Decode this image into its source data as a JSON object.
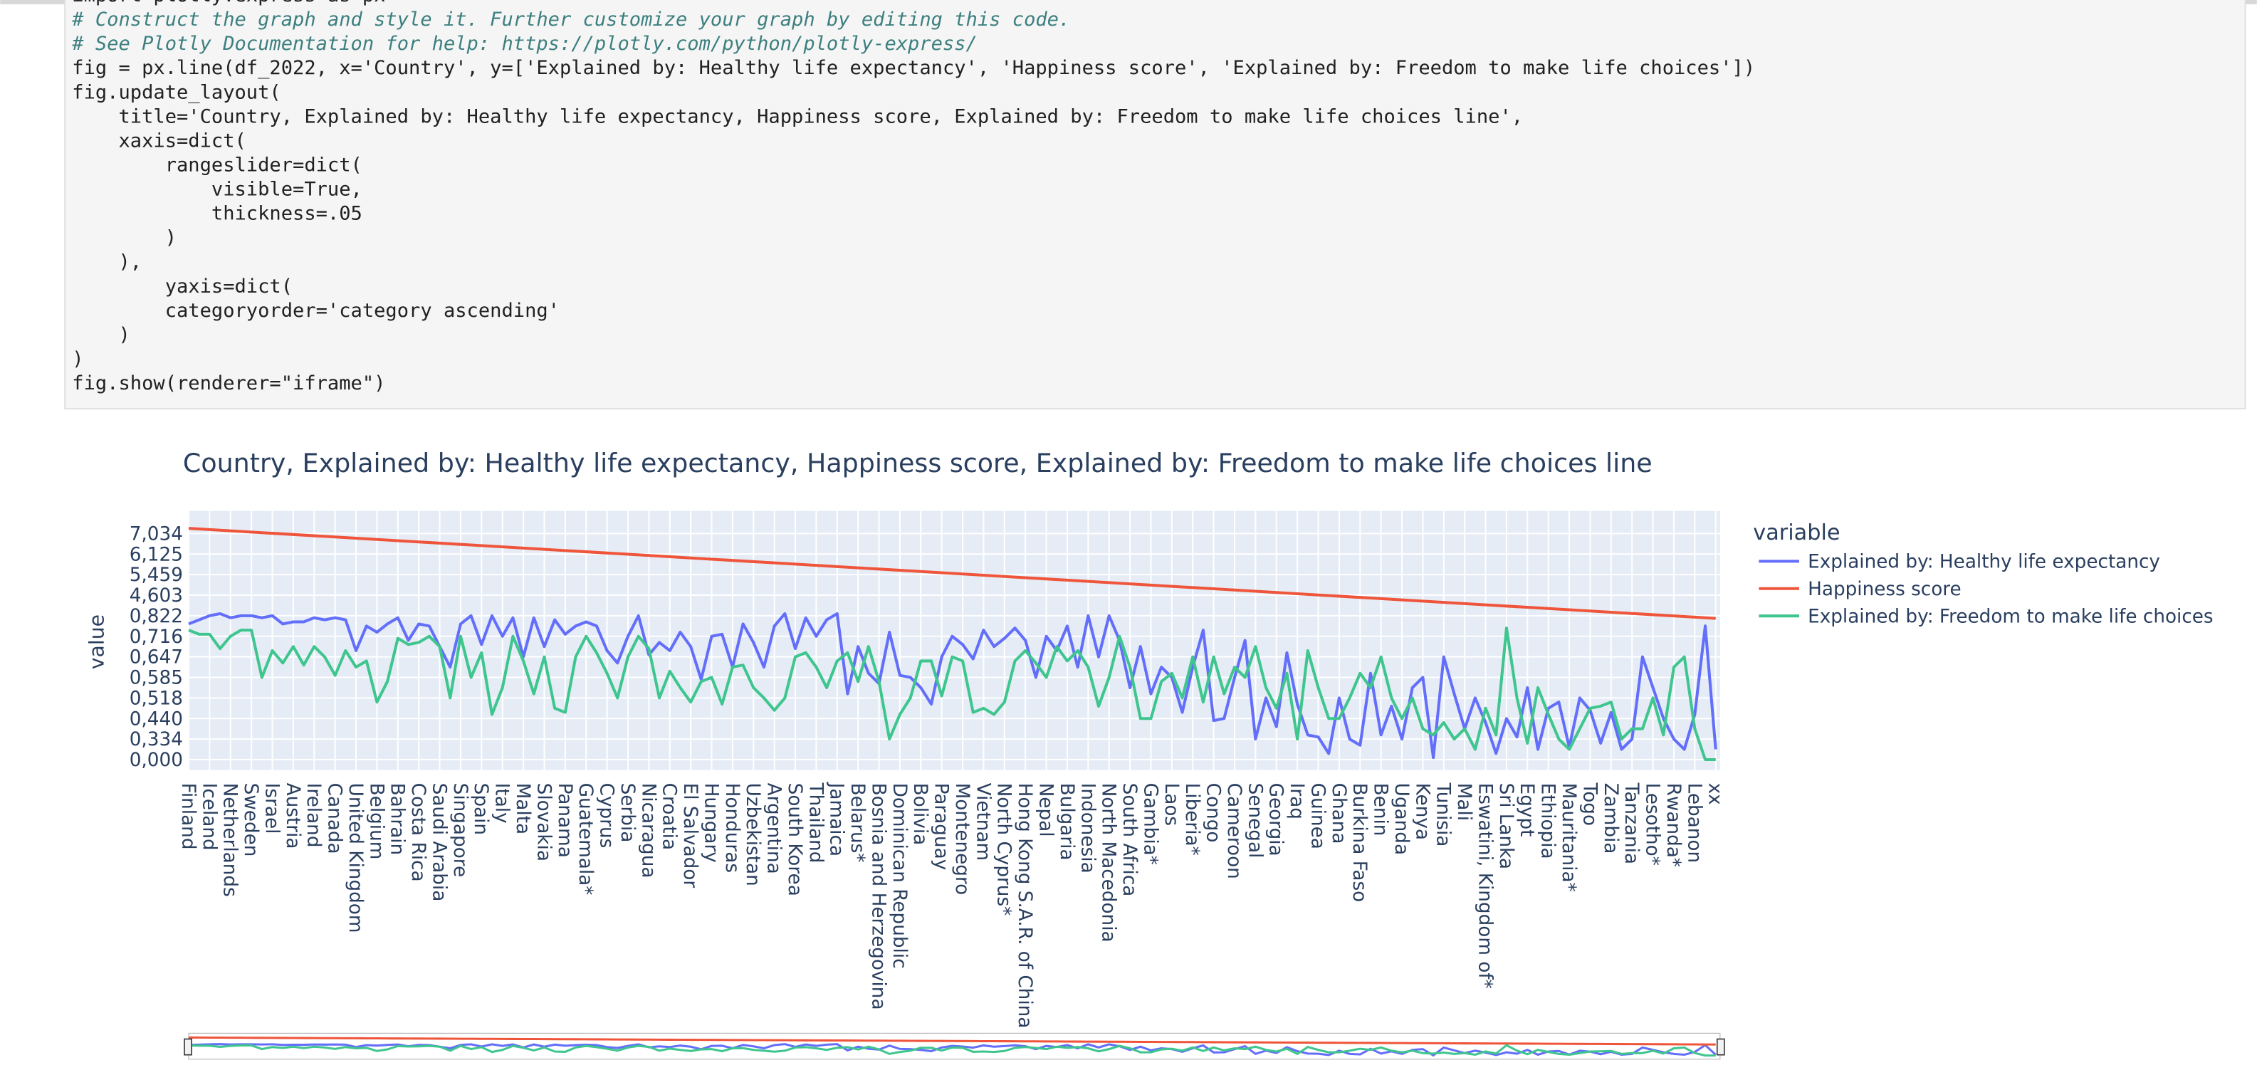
{
  "code": {
    "lines": [
      "import plotly.express as px",
      "# Construct the graph and style it. Further customize your graph by editing this code.",
      "# See Plotly Documentation for help: https://plotly.com/python/plotly-express/",
      "fig = px.line(df_2022, x='Country', y=['Explained by: Healthy life expectancy', 'Happiness score', 'Explained by: Freedom to make life choices'])",
      "fig.update_layout(",
      "    title='Country, Explained by: Healthy life expectancy, Happiness score, Explained by: Freedom to make life choices line',",
      "    xaxis=dict(",
      "        rangeslider=dict(",
      "            visible=True,",
      "            thickness=.05",
      "        )",
      "    ),",
      "        yaxis=dict(",
      "        categoryorder='category ascending'",
      "    )",
      ")",
      "fig.show(renderer=\"iframe\")"
    ]
  },
  "chart_data": {
    "type": "line",
    "title": "Country, Explained by: Healthy life expectancy, Happiness score, Explained by: Freedom to make life choices line",
    "y_label": "value",
    "legend_title": "variable",
    "categories": [
      "Finland",
      null,
      "Iceland",
      null,
      "Netherlands",
      null,
      "Sweden",
      null,
      "Israel",
      null,
      "Austria",
      null,
      "Ireland",
      null,
      "Canada",
      null,
      "United Kingdom",
      null,
      "Belgium",
      null,
      "Bahrain",
      null,
      "Costa Rica",
      null,
      "Saudi Arabia",
      null,
      "Singapore",
      null,
      "Spain",
      null,
      "Italy",
      null,
      "Malta",
      null,
      "Slovakia",
      null,
      "Panama",
      null,
      "Guatemala*",
      null,
      "Cyprus",
      null,
      "Serbia",
      null,
      "Nicaragua",
      null,
      "Croatia",
      null,
      "El Salvador",
      null,
      "Hungary",
      null,
      "Honduras",
      null,
      "Uzbekistan",
      null,
      "Argentina",
      null,
      "South Korea",
      null,
      "Thailand",
      null,
      "Jamaica",
      null,
      "Belarus*",
      null,
      "Bosnia and Herzegovina",
      null,
      "Dominican Republic",
      null,
      "Bolivia",
      null,
      "Paraguay",
      null,
      "Montenegro",
      null,
      "Vietnam",
      null,
      "North Cyprus*",
      null,
      "Hong Kong S.A.R. of China",
      null,
      "Nepal",
      null,
      "Bulgaria",
      null,
      "Indonesia",
      null,
      "North Macedonia",
      null,
      "South Africa",
      null,
      "Gambia*",
      null,
      "Laos",
      null,
      "Liberia*",
      null,
      "Congo",
      null,
      "Cameroon",
      null,
      "Senegal",
      null,
      "Georgia",
      null,
      "Iraq",
      null,
      "Guinea",
      null,
      "Ghana",
      null,
      "Burkina Faso",
      null,
      "Benin",
      null,
      "Uganda",
      null,
      "Kenya",
      null,
      "Tunisia",
      null,
      "Mali",
      null,
      "Eswatini, Kingdom of*",
      null,
      "Sri Lanka",
      null,
      "Egypt",
      null,
      "Ethiopia",
      null,
      "Mauritania*",
      null,
      "Togo",
      null,
      "Zambia",
      null,
      "Tanzania",
      null,
      "Lesotho*",
      null,
      "Rwanda*",
      null,
      "Lebanon",
      null,
      "xx"
    ],
    "series": [
      {
        "name": "Explained by: Healthy life expectancy",
        "color": "#636efa",
        "values": [
          6.6,
          6.8,
          7.0,
          7.1,
          6.9,
          7.0,
          7.0,
          6.9,
          7.0,
          6.6,
          6.7,
          6.7,
          6.9,
          6.8,
          6.9,
          6.8,
          5.3,
          6.5,
          6.2,
          6.6,
          6.9,
          5.8,
          6.6,
          6.5,
          5.5,
          4.5,
          6.6,
          7.0,
          5.6,
          7.0,
          6.0,
          6.9,
          5.0,
          6.9,
          5.5,
          6.8,
          6.1,
          6.5,
          6.7,
          6.5,
          5.3,
          4.7,
          6.0,
          7.0,
          5.1,
          5.7,
          5.3,
          6.2,
          5.5,
          3.9,
          6.0,
          6.1,
          4.5,
          6.6,
          5.7,
          4.5,
          6.5,
          7.1,
          5.4,
          6.9,
          6.0,
          6.8,
          7.1,
          3.2,
          5.5,
          4.2,
          3.7,
          6.2,
          4.1,
          4.0,
          3.5,
          2.7,
          5.0,
          6.0,
          5.6,
          4.9,
          6.3,
          5.5,
          5.9,
          6.4,
          5.8,
          4.0,
          6.0,
          5.3,
          6.5,
          4.5,
          7.0,
          5.0,
          7.0,
          5.8,
          3.5,
          5.5,
          3.2,
          4.5,
          4.0,
          2.3,
          4.5,
          6.3,
          1.9,
          2.0,
          4.0,
          5.8,
          1.0,
          3.0,
          1.6,
          5.2,
          2.7,
          1.2,
          1.1,
          0.3,
          3.0,
          1.0,
          0.7,
          4.2,
          1.2,
          2.6,
          1.0,
          3.5,
          4.0,
          0.1,
          5.0,
          3.2,
          1.5,
          3.0,
          1.8,
          0.3,
          2.0,
          1.1,
          3.5,
          0.5,
          2.5,
          2.8,
          0.6,
          3.0,
          2.4,
          0.8,
          2.3,
          0.5,
          1.0,
          5.0,
          3.5,
          2.0,
          1.0,
          0.5,
          2.2,
          6.5,
          0.5
        ]
      },
      {
        "name": "Happiness score",
        "color": "#ef553b",
        "values": [
          11.25,
          11.22,
          11.19,
          11.16,
          11.13,
          11.1,
          11.07,
          11.04,
          11.01,
          10.98,
          10.95,
          10.92,
          10.89,
          10.86,
          10.83,
          10.8,
          10.77,
          10.74,
          10.71,
          10.68,
          10.65,
          10.62,
          10.59,
          10.56,
          10.53,
          10.5,
          10.47,
          10.44,
          10.41,
          10.38,
          10.35,
          10.32,
          10.29,
          10.26,
          10.23,
          10.2,
          10.17,
          10.14,
          10.11,
          10.08,
          10.05,
          10.02,
          9.99,
          9.96,
          9.93,
          9.9,
          9.87,
          9.84,
          9.81,
          9.78,
          9.75,
          9.72,
          9.69,
          9.66,
          9.63,
          9.6,
          9.57,
          9.54,
          9.51,
          9.48,
          9.45,
          9.42,
          9.39,
          9.36,
          9.33,
          9.3,
          9.27,
          9.24,
          9.21,
          9.18,
          9.15,
          9.12,
          9.09,
          9.06,
          9.03,
          9.0,
          8.97,
          8.94,
          8.91,
          8.88,
          8.85,
          8.82,
          8.79,
          8.76,
          8.73,
          8.7,
          8.67,
          8.64,
          8.61,
          8.58,
          8.55,
          8.52,
          8.49,
          8.46,
          8.43,
          8.4,
          8.37,
          8.34,
          8.31,
          8.28,
          8.25,
          8.22,
          8.19,
          8.16,
          8.13,
          8.1,
          8.07,
          8.04,
          8.01,
          7.98,
          7.95,
          7.92,
          7.89,
          7.86,
          7.83,
          7.8,
          7.77,
          7.74,
          7.71,
          7.68,
          7.65,
          7.62,
          7.59,
          7.56,
          7.53,
          7.5,
          7.47,
          7.44,
          7.41,
          7.38,
          7.35,
          7.32,
          7.29,
          7.26,
          7.23,
          7.2,
          7.17,
          7.14,
          7.11,
          7.08,
          7.05,
          7.02,
          6.99,
          6.96,
          6.93,
          6.9,
          6.87
        ]
      },
      {
        "name": "Explained by: Freedom to make life choices",
        "color": "#3fc58e",
        "values": [
          6.3,
          6.1,
          6.1,
          5.4,
          6.0,
          6.3,
          6.3,
          4.0,
          5.3,
          4.7,
          5.5,
          4.6,
          5.5,
          5.0,
          4.1,
          5.3,
          4.5,
          4.8,
          2.8,
          3.8,
          5.9,
          5.6,
          5.7,
          6.0,
          5.5,
          3.0,
          6.0,
          4.0,
          5.2,
          2.2,
          3.5,
          6.0,
          4.8,
          3.2,
          5.0,
          2.5,
          2.3,
          5.0,
          6.0,
          5.2,
          4.2,
          3.0,
          5.0,
          6.0,
          5.4,
          3.0,
          4.3,
          3.5,
          2.8,
          3.8,
          4.0,
          2.7,
          4.5,
          4.6,
          3.5,
          3.0,
          2.4,
          3.0,
          5.0,
          5.2,
          4.5,
          3.5,
          4.8,
          5.2,
          3.8,
          5.5,
          3.8,
          1.0,
          2.2,
          3.0,
          4.8,
          4.8,
          3.1,
          5.0,
          4.8,
          2.3,
          2.5,
          2.2,
          2.8,
          4.8,
          5.3,
          4.7,
          4.0,
          5.5,
          4.8,
          5.3,
          4.5,
          2.6,
          4.0,
          6.0,
          4.5,
          2.0,
          2.0,
          3.8,
          4.2,
          3.0,
          5.0,
          2.8,
          5.0,
          3.2,
          4.5,
          4.0,
          5.5,
          3.5,
          2.5,
          4.2,
          1.0,
          5.3,
          3.5,
          2.0,
          2.0,
          3.0,
          4.2,
          3.5,
          5.0,
          3.0,
          2.0,
          3.0,
          1.5,
          1.2,
          1.8,
          1.0,
          1.5,
          0.5,
          2.5,
          1.2,
          6.4,
          3.0,
          0.8,
          3.5,
          2.2,
          1.0,
          0.5,
          1.5,
          2.5,
          2.6,
          2.8,
          1.0,
          1.5,
          1.5,
          3.0,
          1.2,
          4.5,
          5.0,
          1.5,
          0.0,
          0.0
        ]
      }
    ],
    "ylim": [
      -0.5,
      12.1
    ],
    "yticks": [
      {
        "value": 0,
        "label": "0,000"
      },
      {
        "value": 1,
        "label": "0,334"
      },
      {
        "value": 2,
        "label": "0,440"
      },
      {
        "value": 3,
        "label": "0,518"
      },
      {
        "value": 4,
        "label": "0,585"
      },
      {
        "value": 5,
        "label": "0,647"
      },
      {
        "value": 6,
        "label": "0,716"
      },
      {
        "value": 7,
        "label": "0,822"
      },
      {
        "value": 8,
        "label": "4,603"
      },
      {
        "value": 9,
        "label": "5,459"
      },
      {
        "value": 10,
        "label": "6,125"
      },
      {
        "value": 11,
        "label": "7,034"
      }
    ],
    "grid": true,
    "rangeslider": true
  }
}
